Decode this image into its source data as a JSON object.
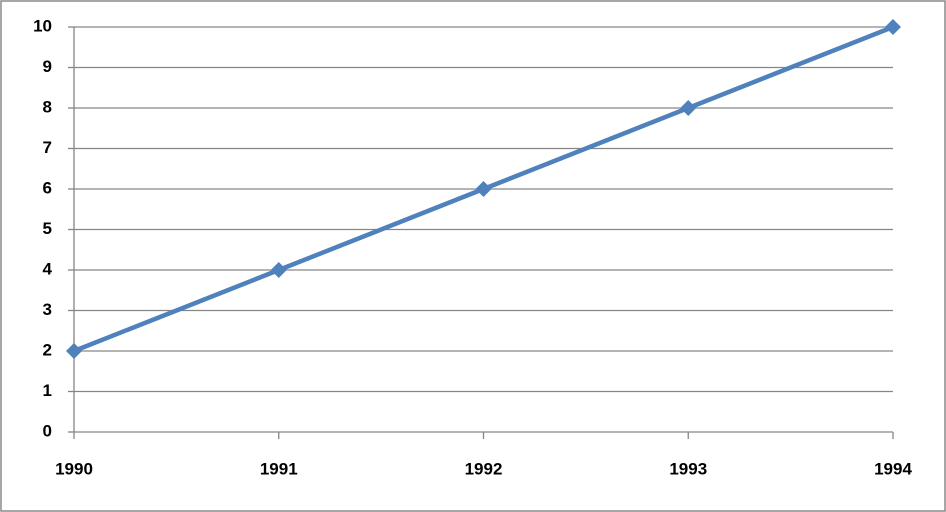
{
  "chart_data": {
    "type": "line",
    "x": [
      1990,
      1991,
      1992,
      1993,
      1994
    ],
    "series": [
      {
        "color": "#4f81bd",
        "values": [
          2,
          4,
          6,
          8,
          10
        ]
      }
    ],
    "xlim": [
      1990,
      1994
    ],
    "xticks": [
      1990,
      1991,
      1992,
      1993,
      1994
    ],
    "ylim": [
      0,
      10
    ],
    "yticks": [
      0,
      1,
      2,
      3,
      4,
      5,
      6,
      7,
      8,
      9,
      10
    ],
    "grid": true
  }
}
